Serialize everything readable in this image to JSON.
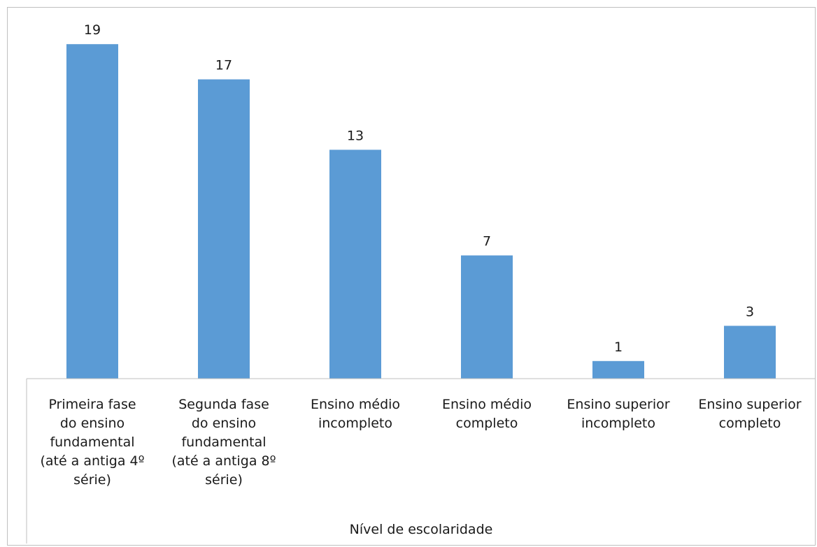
{
  "chart_data": {
    "type": "bar",
    "categories": [
      "Primeira fase do ensino fundamental (até a antiga 4º série)",
      "Segunda fase do ensino fundamental (até a antiga 8º série)",
      "Ensino médio incompleto",
      "Ensino médio completo",
      "Ensino superior incompleto",
      "Ensino superior completo"
    ],
    "category_display_lines": [
      [
        "Primeira fase",
        "do ensino",
        "fundamental",
        "(até a antiga 4º",
        "série)"
      ],
      [
        "Segunda fase",
        "do ensino",
        "fundamental",
        "(até a antiga 8º",
        "série)"
      ],
      [
        "Ensino médio",
        "incompleto"
      ],
      [
        "Ensino médio",
        "completo"
      ],
      [
        "Ensino superior",
        "incompleto"
      ],
      [
        "Ensino superior",
        "completo"
      ]
    ],
    "values": [
      19,
      17,
      13,
      7,
      1,
      3
    ],
    "xlabel": "Nível de escolaridade",
    "ylabel": "",
    "ylim": [
      0,
      20
    ],
    "grid": false,
    "legend": "none",
    "bar_color": "#5b9bd5",
    "data_labels": true
  }
}
